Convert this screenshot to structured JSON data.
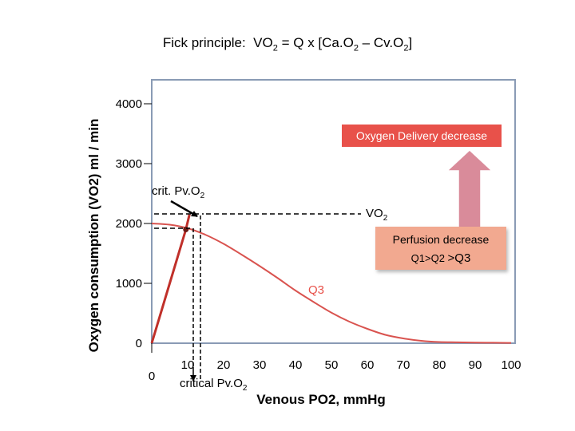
{
  "title": {
    "prefix": "Fick principle:  VO",
    "sub1": "2",
    "middle": " = Q x [Ca.O",
    "sub2": "2",
    "dash": " – Cv.O",
    "sub3": "2",
    "suffix": "]"
  },
  "chart_data": {
    "type": "line",
    "title": "Fick principle:  VO2 = Q x [Ca.O2 – Cv.O2]",
    "xlabel": "Venous PO2, mmHg",
    "ylabel": "Oxygen consumption (VO2) ml / min",
    "xlim": [
      0,
      100
    ],
    "ylim": [
      0,
      4000
    ],
    "x_ticks": [
      "0",
      "10",
      "20",
      "30",
      "40",
      "50",
      "60",
      "70",
      "80",
      "90",
      "100"
    ],
    "y_ticks": [
      "0",
      "1000",
      "2000",
      "3000",
      "4000"
    ],
    "series": [
      {
        "name": "Q3",
        "color": "#d9534f",
        "x": [
          0,
          5,
          10,
          15,
          20,
          25,
          30,
          35,
          40,
          45,
          50,
          55,
          60,
          65,
          70,
          75,
          80,
          85,
          90,
          95,
          100
        ],
        "y": [
          2000,
          1980,
          1920,
          1810,
          1660,
          1480,
          1290,
          1090,
          880,
          690,
          510,
          360,
          240,
          140,
          80,
          40,
          20,
          15,
          10,
          8,
          5
        ]
      },
      {
        "name": "",
        "color": "#c0302a",
        "x": [
          0,
          9.5,
          10.5
        ],
        "y": [
          0,
          1900,
          2150
        ]
      }
    ],
    "annotations": {
      "crit_label": {
        "text": "crit. Pv.O",
        "sub": "2"
      },
      "vo2_label": {
        "text": "VO",
        "sub": "2"
      },
      "q3_label": "Q3",
      "critical_label": {
        "text": "critical Pv.O",
        "sub": "2"
      },
      "oxygen_delivery": "Oxygen Delivery decrease",
      "perfusion_line1": "Perfusion decrease",
      "perfusion_line2a": "Q1>Q2 ",
      "perfusion_line2b": ">Q3"
    },
    "colors": {
      "frame": "#8a9bb5",
      "curve": "#d9534f",
      "line": "#c0302a",
      "delivery_box": "#e8514a",
      "arrow_fill": "#d98b9a",
      "perfusion_box": "#f2a990"
    }
  }
}
